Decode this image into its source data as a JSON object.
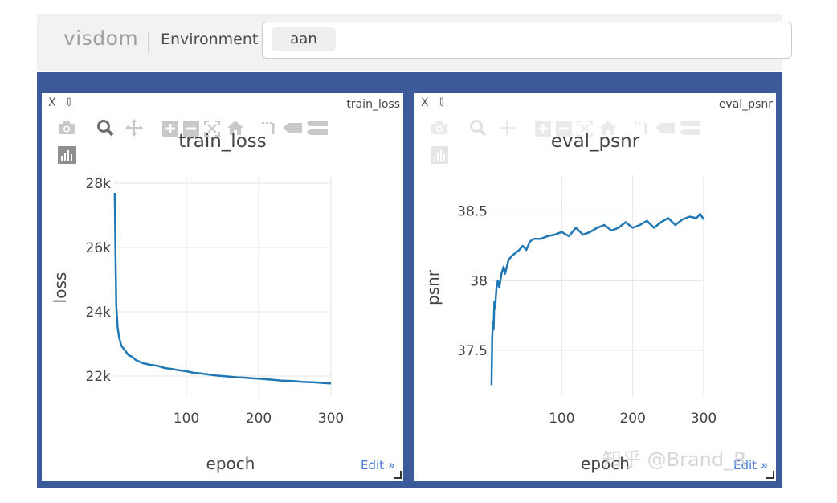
{
  "header": {
    "brand": "visdom",
    "environment_label": "Environment",
    "environment_tag": "aan"
  },
  "panes": [
    {
      "window_label": "train_loss",
      "close_label": "X",
      "save_label": "⇩",
      "edit_label": "Edit »",
      "chart_data": {
        "type": "line",
        "title": "train_loss",
        "xlabel": "epoch",
        "ylabel": "loss",
        "xlim": [
          0,
          300
        ],
        "ylim": [
          21500,
          28000
        ],
        "xticks": [
          100,
          200,
          300
        ],
        "xtick_labels": [
          "100",
          "200",
          "300"
        ],
        "yticks": [
          22000,
          24000,
          26000,
          28000
        ],
        "ytick_labels": [
          "22k",
          "24k",
          "26k",
          "28k"
        ],
        "grid": true,
        "line_color": "#1f77b4",
        "series": [
          {
            "x": [
              1,
              2,
              3,
              5,
              7,
              10,
              15,
              20,
              25,
              30,
              40,
              50,
              60,
              70,
              80,
              90,
              100,
              110,
              120,
              130,
              140,
              150,
              160,
              170,
              180,
              190,
              200,
              210,
              220,
              230,
              240,
              250,
              260,
              270,
              280,
              290,
              300
            ],
            "values": [
              27700,
              25800,
              24200,
              23500,
              23200,
              22950,
              22800,
              22650,
              22600,
              22500,
              22400,
              22350,
              22320,
              22250,
              22220,
              22180,
              22150,
              22100,
              22080,
              22050,
              22020,
              22000,
              21980,
              21960,
              21950,
              21930,
              21920,
              21900,
              21880,
              21860,
              21850,
              21840,
              21820,
              21810,
              21800,
              21780,
              21770
            ]
          }
        ]
      }
    },
    {
      "window_label": "eval_psnr",
      "close_label": "X",
      "save_label": "⇩",
      "edit_label": "Edit »",
      "chart_data": {
        "type": "line",
        "title": "eval_psnr",
        "xlabel": "epoch",
        "ylabel": "psnr",
        "xlim": [
          0,
          300
        ],
        "ylim": [
          37.2,
          38.7
        ],
        "xticks": [
          100,
          200,
          300
        ],
        "xtick_labels": [
          "100",
          "200",
          "300"
        ],
        "yticks": [
          37.5,
          38,
          38.5
        ],
        "ytick_labels": [
          "37.5",
          "38",
          "38.5"
        ],
        "grid": true,
        "line_color": "#1f77b4",
        "series": [
          {
            "x": [
              1,
              2,
              3,
              4,
              5,
              6,
              8,
              10,
              12,
              15,
              18,
              20,
              25,
              30,
              35,
              40,
              45,
              50,
              55,
              60,
              70,
              80,
              90,
              100,
              110,
              120,
              130,
              140,
              150,
              160,
              170,
              180,
              190,
              200,
              210,
              220,
              230,
              240,
              250,
              260,
              270,
              280,
              290,
              295,
              300
            ],
            "values": [
              37.25,
              37.6,
              37.7,
              37.65,
              37.85,
              37.8,
              37.95,
              38.0,
              37.95,
              38.05,
              38.1,
              38.05,
              38.15,
              38.18,
              38.2,
              38.22,
              38.25,
              38.22,
              38.28,
              38.3,
              38.3,
              38.32,
              38.33,
              38.35,
              38.32,
              38.38,
              38.33,
              38.35,
              38.38,
              38.4,
              38.36,
              38.38,
              38.42,
              38.38,
              38.4,
              38.43,
              38.38,
              38.42,
              38.45,
              38.4,
              38.44,
              38.46,
              38.45,
              38.48,
              38.44
            ]
          }
        ]
      }
    }
  ],
  "watermark": "知乎 @Brand_R"
}
